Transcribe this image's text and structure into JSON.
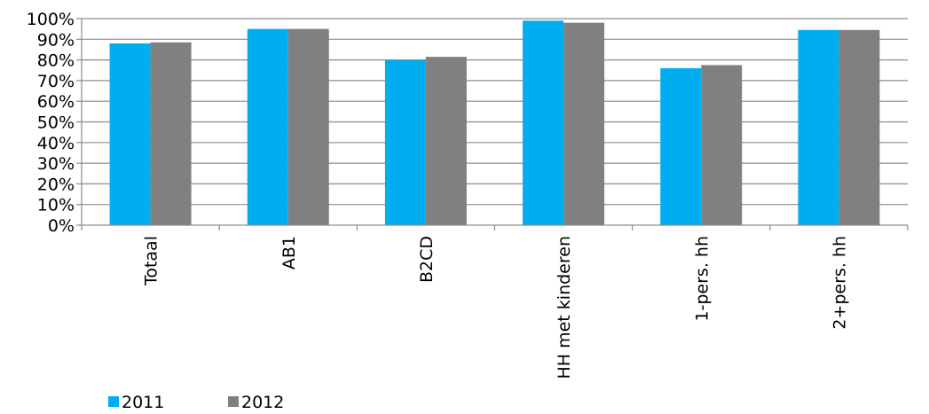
{
  "chart_data": {
    "type": "bar",
    "categories": [
      "Totaal",
      "AB1",
      "B2CD",
      "HH met kinderen",
      "1-pers. hh",
      "2+pers. hh"
    ],
    "series": [
      {
        "name": "2011",
        "values": [
          88,
          95,
          80,
          99,
          76,
          94.5
        ]
      },
      {
        "name": "2012",
        "values": [
          88.5,
          95,
          81.5,
          98,
          77.5,
          94.5
        ]
      }
    ],
    "ylim": [
      0,
      100
    ],
    "y_ticks": [
      "0%",
      "10%",
      "20%",
      "30%",
      "40%",
      "50%",
      "60%",
      "70%",
      "80%",
      "90%",
      "100%"
    ],
    "grid": true,
    "legend": "bottom-left",
    "colors": {
      "2011": "#00aeef",
      "2012": "#808080",
      "grid": "#8c8c8c",
      "axis": "#8c8c8c"
    }
  }
}
